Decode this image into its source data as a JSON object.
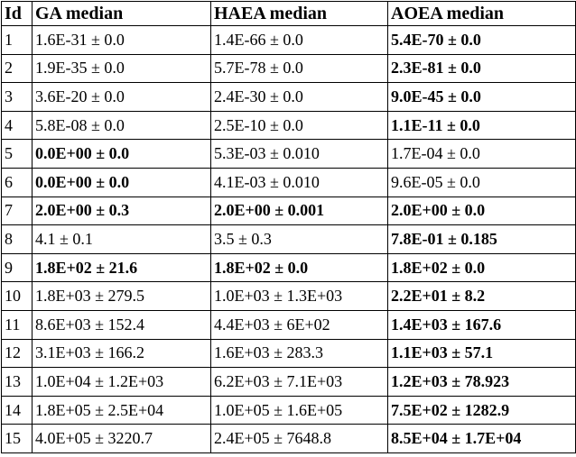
{
  "table": {
    "header": [
      "Id",
      "GA median",
      "HAEA median",
      "AOEA median"
    ],
    "rows": [
      [
        "1",
        "1.6E-31 ± 0.0",
        "1.4E-66 ± 0.0",
        "5.4E-70 ± 0.0"
      ],
      [
        "2",
        "1.9E-35 ± 0.0",
        "5.7E-78 ± 0.0",
        "2.3E-81 ± 0.0"
      ],
      [
        "3",
        "3.6E-20 ± 0.0",
        "2.4E-30 ± 0.0",
        "9.0E-45 ± 0.0"
      ],
      [
        "4",
        "5.8E-08 ± 0.0",
        "2.5E-10 ± 0.0",
        "1.1E-11 ± 0.0"
      ],
      [
        "5",
        "0.0E+00 ± 0.0",
        "5.3E-03 ± 0.010",
        "1.7E-04 ± 0.0"
      ],
      [
        "6",
        "0.0E+00 ± 0.0",
        "4.1E-03 ± 0.010",
        "9.6E-05 ± 0.0"
      ],
      [
        "7",
        "2.0E+00 ± 0.3",
        "2.0E+00 ± 0.001",
        "2.0E+00 ± 0.0"
      ],
      [
        "8",
        "4.1 ± 0.1",
        "3.5 ± 0.3",
        "7.8E-01 ± 0.185"
      ],
      [
        "9",
        "1.8E+02 ± 21.6",
        "1.8E+02 ± 0.0",
        "1.8E+02 ± 0.0"
      ],
      [
        "10",
        "1.8E+03 ± 279.5",
        "1.0E+03 ± 1.3E+03",
        "2.2E+01 ± 8.2"
      ],
      [
        "11",
        "8.6E+03 ± 152.4",
        "4.4E+03 ± 6E+02",
        "1.4E+03 ± 167.6"
      ],
      [
        "12",
        "3.1E+03 ± 166.2",
        "1.6E+03 ± 283.3",
        "1.1E+03 ± 57.1"
      ],
      [
        "13",
        "1.0E+04 ± 1.2E+03",
        "6.2E+03 ± 7.1E+03",
        "1.2E+03 ± 78.923"
      ],
      [
        "14",
        "1.8E+05 ± 2.5E+04",
        "1.0E+05 ± 1.6E+05",
        "7.5E+02 ± 1282.9"
      ],
      [
        "15",
        "4.0E+05 ± 3220.7",
        "2.4E+05 ± 7648.8",
        "8.5E+04 ± 1.7E+04"
      ]
    ]
  }
}
